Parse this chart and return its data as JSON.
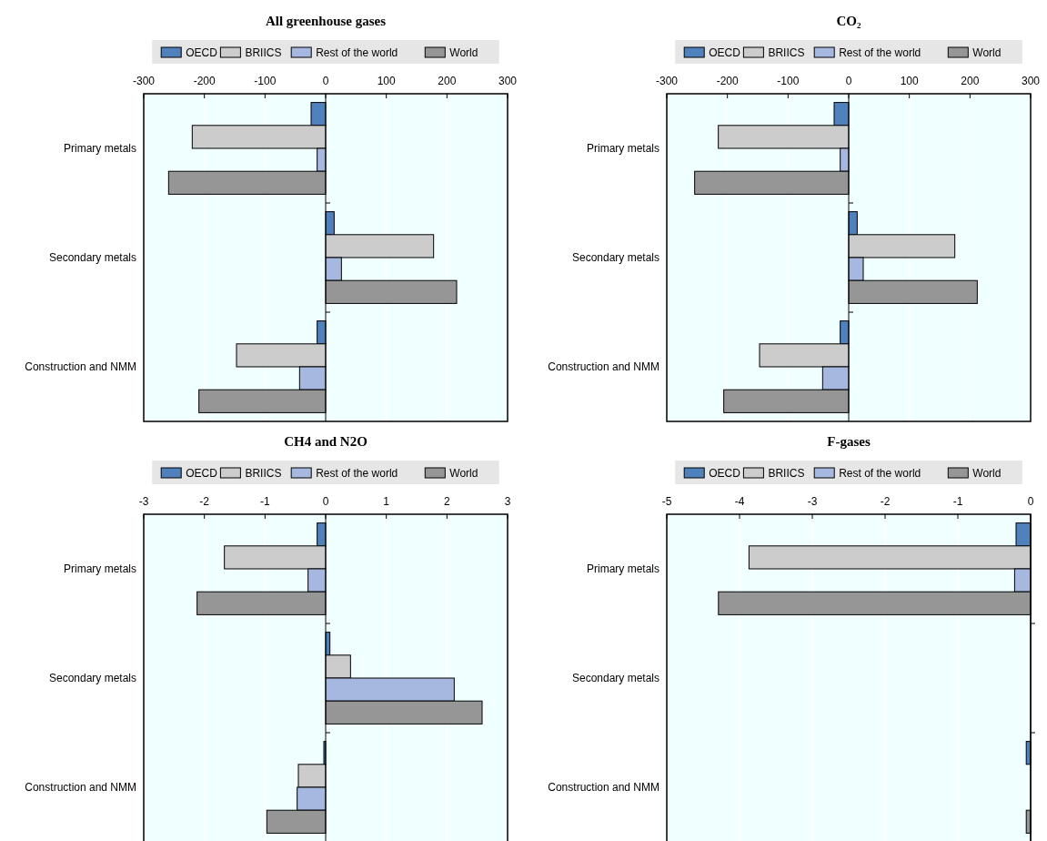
{
  "chart_data": [
    {
      "type": "bar",
      "orientation": "horizontal",
      "title": "All greenhouse gases",
      "categories": [
        "Primary metals",
        "Secondary metals",
        "Construction and NMM"
      ],
      "xlim": [
        -300,
        300
      ],
      "xticks": [
        -300,
        -200,
        -100,
        0,
        100,
        200,
        300
      ],
      "grid": "x",
      "legend": "top",
      "series": [
        {
          "name": "OECD",
          "color": "#4f81bd",
          "values": [
            -24,
            14,
            -14
          ]
        },
        {
          "name": "BRIICS",
          "color": "#cccccc",
          "values": [
            -220,
            178,
            -147
          ]
        },
        {
          "name": "Rest of the world",
          "color": "#a6b8e0",
          "values": [
            -14,
            26,
            -43
          ]
        },
        {
          "name": "World",
          "color": "#969696",
          "values": [
            -259,
            216,
            -209
          ]
        }
      ]
    },
    {
      "type": "bar",
      "orientation": "horizontal",
      "title": "CO₂",
      "categories": [
        "Primary metals",
        "Secondary metals",
        "Construction and NMM"
      ],
      "xlim": [
        -300,
        300
      ],
      "xticks": [
        -300,
        -200,
        -100,
        0,
        100,
        200,
        300
      ],
      "grid": "x",
      "legend": "top",
      "series": [
        {
          "name": "OECD",
          "color": "#4f81bd",
          "values": [
            -24,
            14,
            -14
          ]
        },
        {
          "name": "BRIICS",
          "color": "#cccccc",
          "values": [
            -215,
            175,
            -147
          ]
        },
        {
          "name": "Rest of the world",
          "color": "#a6b8e0",
          "values": [
            -14,
            24,
            -43
          ]
        },
        {
          "name": "World",
          "color": "#969696",
          "values": [
            -254,
            212,
            -206
          ]
        }
      ]
    },
    {
      "type": "bar",
      "orientation": "horizontal",
      "title": "CH4 and N2O",
      "categories": [
        "Primary metals",
        "Secondary metals",
        "Construction and NMM"
      ],
      "xlim": [
        -3,
        3
      ],
      "xticks": [
        -3,
        -2,
        -1,
        0,
        1,
        2,
        3
      ],
      "grid": "x",
      "legend": "top",
      "series": [
        {
          "name": "OECD",
          "color": "#4f81bd",
          "values": [
            -0.14,
            0.07,
            -0.03
          ]
        },
        {
          "name": "BRIICS",
          "color": "#cccccc",
          "values": [
            -1.67,
            0.41,
            -0.45
          ]
        },
        {
          "name": "Rest of the world",
          "color": "#a6b8e0",
          "values": [
            -0.29,
            2.12,
            -0.47
          ]
        },
        {
          "name": "World",
          "color": "#969696",
          "values": [
            -2.12,
            2.58,
            -0.97
          ]
        }
      ]
    },
    {
      "type": "bar",
      "orientation": "horizontal",
      "title": "F-gases",
      "categories": [
        "Primary metals",
        "Secondary metals",
        "Construction and NMM"
      ],
      "xlim": [
        -5,
        0
      ],
      "xticks": [
        -5,
        -4,
        -3,
        -2,
        -1,
        0
      ],
      "grid": "x",
      "legend": "top",
      "series": [
        {
          "name": "OECD",
          "color": "#4f81bd",
          "values": [
            -0.2,
            null,
            -0.06
          ]
        },
        {
          "name": "BRIICS",
          "color": "#cccccc",
          "values": [
            -3.87,
            null,
            null
          ]
        },
        {
          "name": "Rest of the world",
          "color": "#a6b8e0",
          "values": [
            -0.22,
            null,
            null
          ]
        },
        {
          "name": "World",
          "color": "#969696",
          "values": [
            -4.29,
            null,
            -0.06
          ]
        }
      ]
    }
  ]
}
